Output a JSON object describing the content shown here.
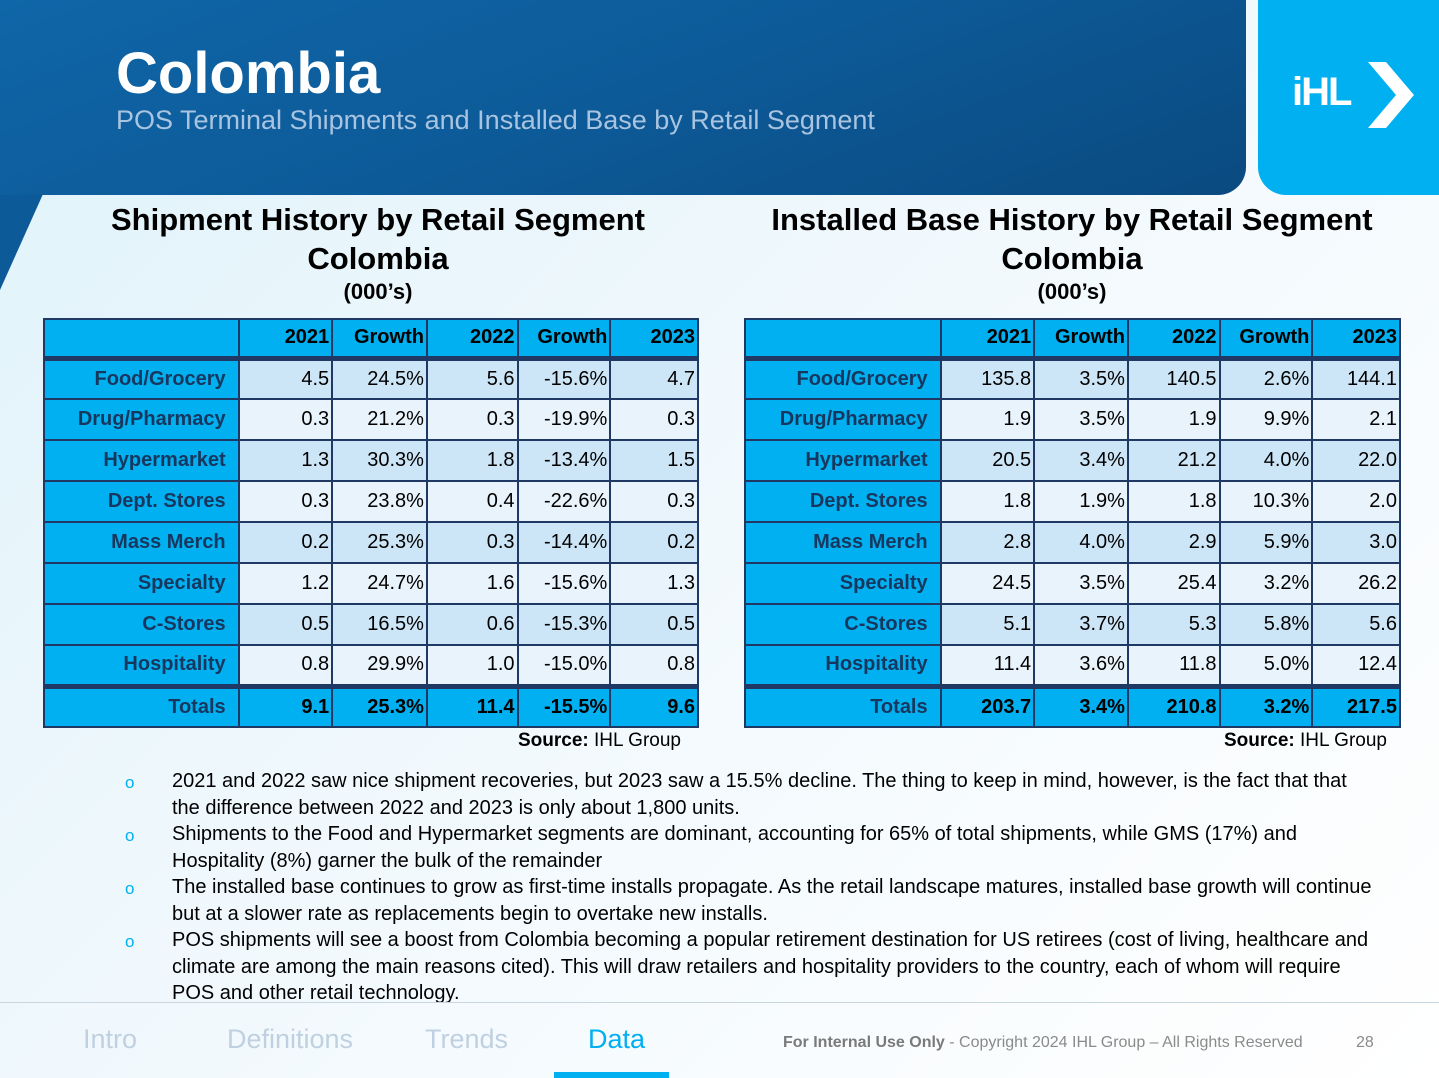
{
  "header": {
    "title": "Colombia",
    "subtitle": "POS Terminal Shipments and Installed Base by Retail Segment",
    "logo": "IHL GROUP"
  },
  "tables": [
    {
      "title": "Shipment History by Retail Segment",
      "country": "Colombia",
      "units": "(000’s)",
      "columns": [
        "",
        "2021",
        "Growth",
        "2022",
        "Growth",
        "2023"
      ],
      "rows": [
        [
          "Food/Grocery",
          "4.5",
          "24.5%",
          "5.6",
          "-15.6%",
          "4.7"
        ],
        [
          "Drug/Pharmacy",
          "0.3",
          "21.2%",
          "0.3",
          "-19.9%",
          "0.3"
        ],
        [
          "Hypermarket",
          "1.3",
          "30.3%",
          "1.8",
          "-13.4%",
          "1.5"
        ],
        [
          "Dept. Stores",
          "0.3",
          "23.8%",
          "0.4",
          "-22.6%",
          "0.3"
        ],
        [
          "Mass Merch",
          "0.2",
          "25.3%",
          "0.3",
          "-14.4%",
          "0.2"
        ],
        [
          "Specialty",
          "1.2",
          "24.7%",
          "1.6",
          "-15.6%",
          "1.3"
        ],
        [
          "C-Stores",
          "0.5",
          "16.5%",
          "0.6",
          "-15.3%",
          "0.5"
        ],
        [
          "Hospitality",
          "0.8",
          "29.9%",
          "1.0",
          "-15.0%",
          "0.8"
        ]
      ],
      "totals": [
        "Totals",
        "9.1",
        "25.3%",
        "11.4",
        "-15.5%",
        "9.6"
      ],
      "source_label": "Source:",
      "source": "IHL Group"
    },
    {
      "title": "Installed Base History by Retail Segment",
      "country": "Colombia",
      "units": "(000’s)",
      "columns": [
        "",
        "2021",
        "Growth",
        "2022",
        "Growth",
        "2023"
      ],
      "rows": [
        [
          "Food/Grocery",
          "135.8",
          "3.5%",
          "140.5",
          "2.6%",
          "144.1"
        ],
        [
          "Drug/Pharmacy",
          "1.9",
          "3.5%",
          "1.9",
          "9.9%",
          "2.1"
        ],
        [
          "Hypermarket",
          "20.5",
          "3.4%",
          "21.2",
          "4.0%",
          "22.0"
        ],
        [
          "Dept. Stores",
          "1.8",
          "1.9%",
          "1.8",
          "10.3%",
          "2.0"
        ],
        [
          "Mass Merch",
          "2.8",
          "4.0%",
          "2.9",
          "5.9%",
          "3.0"
        ],
        [
          "Specialty",
          "24.5",
          "3.5%",
          "25.4",
          "3.2%",
          "26.2"
        ],
        [
          "C-Stores",
          "5.1",
          "3.7%",
          "5.3",
          "5.8%",
          "5.6"
        ],
        [
          "Hospitality",
          "11.4",
          "3.6%",
          "11.8",
          "5.0%",
          "12.4"
        ]
      ],
      "totals": [
        "Totals",
        "203.7",
        "3.4%",
        "210.8",
        "3.2%",
        "217.5"
      ],
      "source_label": "Source:",
      "source": "IHL Group"
    }
  ],
  "bullets": [
    "2021 and 2022 saw nice shipment recoveries, but 2023 saw a 15.5% decline. The thing to keep in mind, however, is the fact that that the difference between 2022 and 2023 is only about 1,800 units.",
    "Shipments to the Food and Hypermarket segments are dominant, accounting for 65% of total shipments, while GMS (17%) and Hospitality (8%) garner the bulk of the remainder",
    "The installed base continues to grow as first-time installs propagate. As the retail landscape matures, installed base growth will continue but at a slower rate as replacements begin to overtake new installs.",
    "POS shipments will see a boost from Colombia becoming a popular retirement destination for US retirees (cost of living, healthcare and climate are among the main reasons cited). This will draw retailers and hospitality providers to the country, each of whom will require POS and other retail technology."
  ],
  "bullet_marker": "o",
  "footer": {
    "nav": [
      "Intro",
      "Definitions",
      "Trends",
      "Data"
    ],
    "active": "Data",
    "internal": "For Internal Use Only",
    "copyright": " - Copyright 2024 IHL Group – All Rights Reserved",
    "page": "28"
  }
}
